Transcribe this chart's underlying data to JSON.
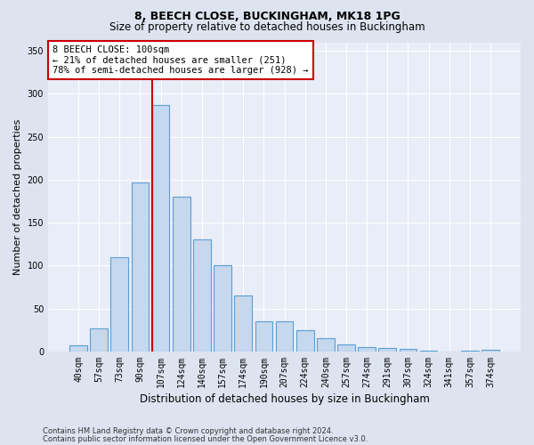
{
  "title1": "8, BEECH CLOSE, BUCKINGHAM, MK18 1PG",
  "title2": "Size of property relative to detached houses in Buckingham",
  "xlabel": "Distribution of detached houses by size in Buckingham",
  "ylabel": "Number of detached properties",
  "categories": [
    "40sqm",
    "57sqm",
    "73sqm",
    "90sqm",
    "107sqm",
    "124sqm",
    "140sqm",
    "157sqm",
    "174sqm",
    "190sqm",
    "207sqm",
    "224sqm",
    "240sqm",
    "257sqm",
    "274sqm",
    "291sqm",
    "307sqm",
    "324sqm",
    "341sqm",
    "357sqm",
    "374sqm"
  ],
  "values": [
    7,
    27,
    110,
    197,
    287,
    180,
    130,
    100,
    65,
    35,
    35,
    25,
    16,
    8,
    5,
    4,
    3,
    1,
    0,
    1,
    2
  ],
  "bar_color": "#c5d8ee",
  "bar_edge_color": "#5a9fd4",
  "vline_index": 3.575,
  "annotation_text": "8 BEECH CLOSE: 100sqm\n← 21% of detached houses are smaller (251)\n78% of semi-detached houses are larger (928) →",
  "annotation_box_color": "#ffffff",
  "annotation_box_edge_color": "#cc0000",
  "ylim": [
    0,
    360
  ],
  "yticks": [
    0,
    50,
    100,
    150,
    200,
    250,
    300,
    350
  ],
  "footer1": "Contains HM Land Registry data © Crown copyright and database right 2024.",
  "footer2": "Contains public sector information licensed under the Open Government Licence v3.0.",
  "bg_color": "#dde4f0",
  "plot_bg_color": "#e8edf8",
  "grid_color": "#ffffff",
  "vline_color": "#cc0000",
  "title1_fontsize": 9,
  "title2_fontsize": 8.5,
  "ylabel_fontsize": 8,
  "xlabel_fontsize": 8.5,
  "tick_fontsize": 7,
  "footer_fontsize": 6,
  "ann_fontsize": 7.5
}
